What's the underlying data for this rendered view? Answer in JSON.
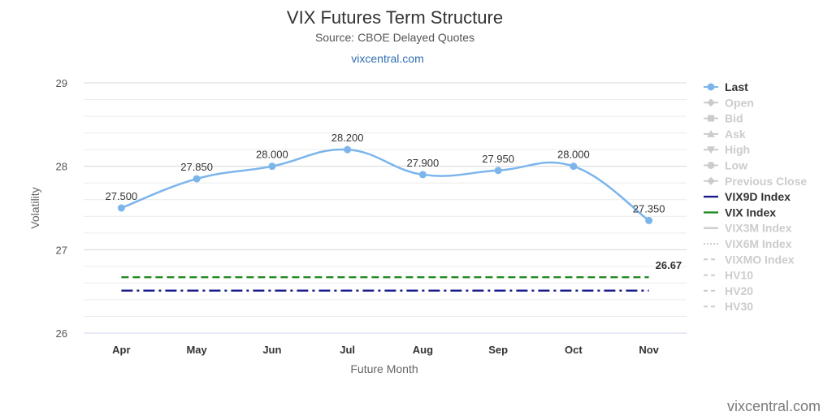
{
  "header": {
    "title": "VIX Futures Term Structure",
    "subtitle": "Source: CBOE Delayed Quotes",
    "link": "vixcentral.com"
  },
  "watermark": "vixcentral.com",
  "chart_data": {
    "type": "line",
    "title": "VIX Futures Term Structure",
    "subtitle": "Source: CBOE Delayed Quotes",
    "xlabel": "Future Month",
    "ylabel": "Volatility",
    "ylim": [
      26,
      29
    ],
    "yticks": [
      26,
      27,
      28,
      29
    ],
    "grid": true,
    "legend_position": "right",
    "categories": [
      "Apr",
      "May",
      "Jun",
      "Jul",
      "Aug",
      "Sep",
      "Oct",
      "Nov"
    ],
    "series": [
      {
        "name": "Last",
        "values": [
          27.5,
          27.85,
          28.0,
          28.2,
          27.9,
          27.95,
          28.0,
          27.35
        ],
        "labels": [
          "27.500",
          "27.850",
          "28.000",
          "28.200",
          "27.900",
          "27.950",
          "28.000",
          "27.350"
        ],
        "color": "#7cb5ec"
      },
      {
        "name": "VIX9D Index",
        "value": 26.51,
        "color": "#1a1a8c",
        "dash": "dash-dot"
      },
      {
        "name": "VIX Index",
        "value": 26.67,
        "label": "26.67",
        "color": "#228B22",
        "dash": "dash"
      }
    ],
    "legend": [
      {
        "name": "Last",
        "symbol": "circle",
        "color": "#7cb5ec",
        "active": true,
        "text_color": "#333333"
      },
      {
        "name": "Open",
        "symbol": "diamond",
        "color": "#cccccc",
        "active": false,
        "text_color": "#cccccc"
      },
      {
        "name": "Bid",
        "symbol": "square",
        "color": "#cccccc",
        "active": false,
        "text_color": "#cccccc"
      },
      {
        "name": "Ask",
        "symbol": "triangle",
        "color": "#cccccc",
        "active": false,
        "text_color": "#cccccc"
      },
      {
        "name": "High",
        "symbol": "triangle-down",
        "color": "#cccccc",
        "active": false,
        "text_color": "#cccccc"
      },
      {
        "name": "Low",
        "symbol": "circle",
        "color": "#cccccc",
        "active": false,
        "text_color": "#cccccc"
      },
      {
        "name": "Previous Close",
        "symbol": "diamond",
        "color": "#cccccc",
        "active": false,
        "text_color": "#cccccc"
      },
      {
        "name": "VIX9D Index",
        "symbol": "line",
        "color": "#1a1a8c",
        "active": true,
        "text_color": "#333333"
      },
      {
        "name": "VIX Index",
        "symbol": "line",
        "color": "#228B22",
        "active": true,
        "text_color": "#333333"
      },
      {
        "name": "VIX3M Index",
        "symbol": "line",
        "color": "#cccccc",
        "active": false,
        "text_color": "#cccccc"
      },
      {
        "name": "VIX6M Index",
        "symbol": "dots",
        "color": "#cccccc",
        "active": false,
        "text_color": "#cccccc"
      },
      {
        "name": "VIXMO Index",
        "symbol": "dash",
        "color": "#cccccc",
        "active": false,
        "text_color": "#cccccc"
      },
      {
        "name": "HV10",
        "symbol": "dash",
        "color": "#cccccc",
        "active": false,
        "text_color": "#cccccc"
      },
      {
        "name": "HV20",
        "symbol": "dash",
        "color": "#cccccc",
        "active": false,
        "text_color": "#cccccc"
      },
      {
        "name": "HV30",
        "symbol": "dash",
        "color": "#cccccc",
        "active": false,
        "text_color": "#cccccc"
      }
    ]
  }
}
